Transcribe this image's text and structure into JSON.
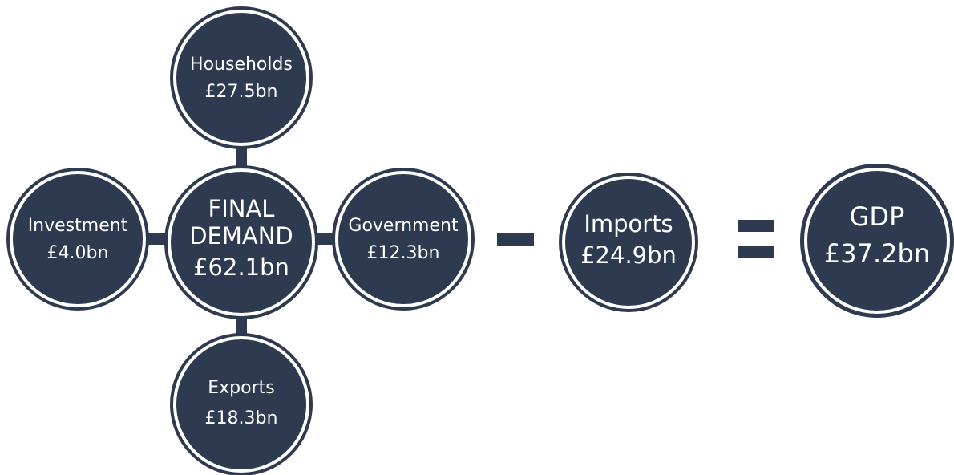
{
  "nodes": [
    {
      "label": "Households",
      "value": "£27.5bn"
    },
    {
      "label": "Investment",
      "value": "£4.0bn"
    },
    {
      "label": "FINAL",
      "label2": "DEMAND",
      "value": "£62.1bn"
    },
    {
      "label": "Government",
      "value": "£12.3bn"
    },
    {
      "label": "Exports",
      "value": "£18.3bn"
    },
    {
      "label": "Imports",
      "value": "£24.9bn"
    },
    {
      "label": "GDP",
      "value": "£37.2bn"
    }
  ]
}
